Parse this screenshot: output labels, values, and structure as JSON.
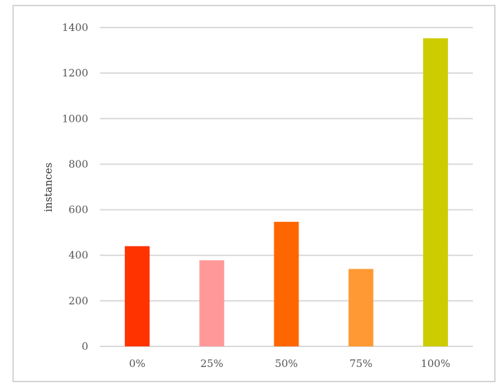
{
  "chart_data": {
    "type": "bar",
    "title": "",
    "xlabel": "",
    "ylabel": "instances",
    "categories": [
      "0%",
      "25%",
      "50%",
      "75%",
      "100%"
    ],
    "values": [
      440,
      378,
      547,
      340,
      1353
    ],
    "colors": [
      "#ff3300",
      "#ff9999",
      "#ff6600",
      "#ff9933",
      "#cccc00"
    ],
    "ylim": [
      0,
      1400
    ],
    "yticks": [
      0,
      200,
      400,
      600,
      800,
      1000,
      1200,
      1400
    ],
    "grid": true,
    "gridColor": "#d9d9d9",
    "legend": "none"
  }
}
